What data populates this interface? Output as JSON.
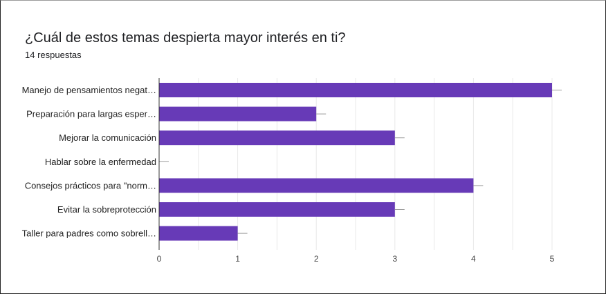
{
  "title": "¿Cuál de estos temas despierta mayor interés en ti?",
  "subtitle": "14 respuestas",
  "colors": {
    "bar": "#673ab7",
    "grid": "#e8e8e8",
    "axis": "#333333",
    "errorbar": "#999999"
  },
  "chart_data": {
    "type": "bar",
    "orientation": "horizontal",
    "categories": [
      "Manejo de pensamientos negat…",
      "Preparación para largas esper…",
      "Mejorar la comunicación",
      "Hablar sobre la enfermedad",
      "Consejos prácticos para \"norm…",
      "Evitar la sobreprotección",
      "Taller para padres como sobrell…"
    ],
    "values": [
      5,
      2,
      3,
      0,
      4,
      3,
      1
    ],
    "xlim": [
      0,
      5
    ],
    "xticks": [
      "0",
      "1",
      "2",
      "3",
      "4",
      "5"
    ],
    "grid": true,
    "error_bars": true
  }
}
